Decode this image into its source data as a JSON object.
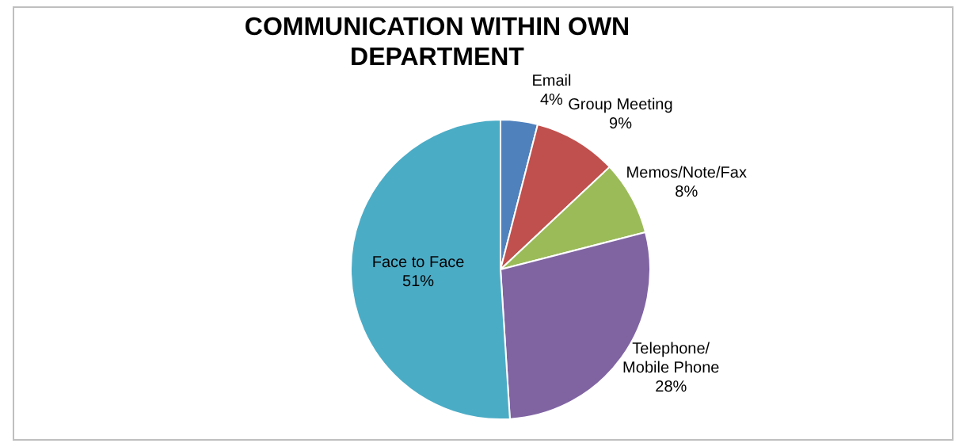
{
  "chart_data": {
    "type": "pie",
    "title": "COMMUNICATION WITHIN OWN DEPARTMENT",
    "categories": [
      "Email",
      "Group Meeting",
      "Memos/Note/Fax",
      "Telephone/Mobile Phone",
      "Face to Face"
    ],
    "values": [
      4,
      9,
      8,
      28,
      51
    ],
    "value_labels": [
      "4%",
      "9%",
      "8%",
      "28%",
      "51%"
    ],
    "colors": [
      "#4f81bd",
      "#c0504d",
      "#9bbb59",
      "#8064a2",
      "#4bacc6"
    ],
    "legend": false
  }
}
